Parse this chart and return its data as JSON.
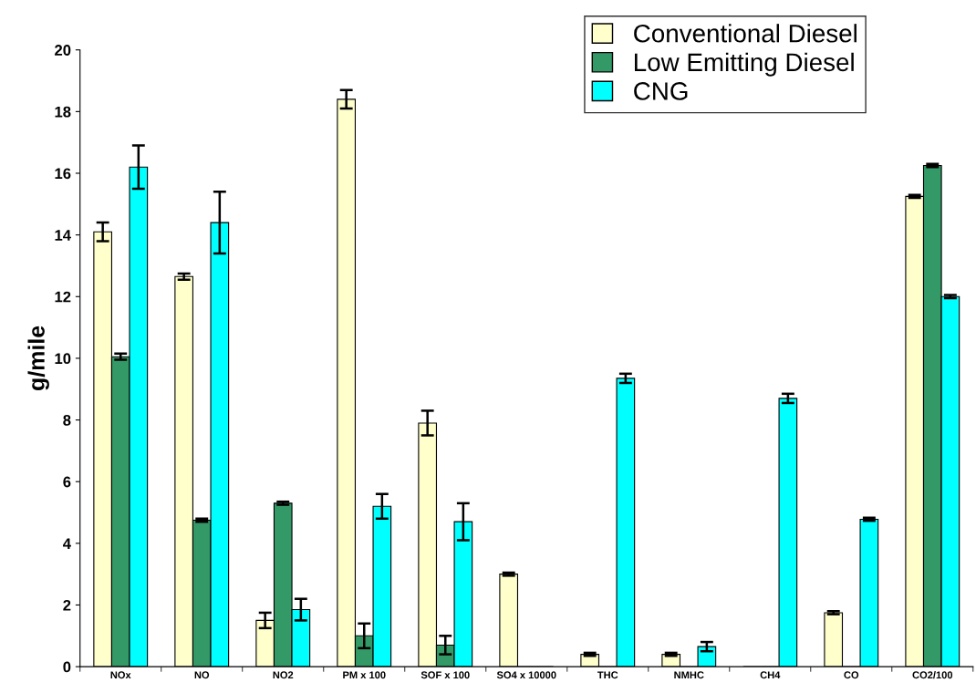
{
  "chart_data": {
    "type": "bar",
    "ylabel": "g/mile",
    "categories": [
      "NOx",
      "NO",
      "NO2",
      "PM x 100",
      "SOF x 100",
      "SO4 x 10000",
      "THC",
      "NMHC",
      "CH4",
      "CO",
      "CO2/100"
    ],
    "series": [
      {
        "name": "Conventional Diesel",
        "color": "#ffffcc",
        "values": [
          14.1,
          12.65,
          1.5,
          18.4,
          7.9,
          3.0,
          0.4,
          0.4,
          0,
          1.75,
          15.25
        ],
        "errors": [
          0.3,
          0.1,
          0.25,
          0.3,
          0.4,
          0.05,
          0.05,
          0.05,
          null,
          0.05,
          0.05
        ]
      },
      {
        "name": "Low Emitting Diesel",
        "color": "#339966",
        "values": [
          10.05,
          4.75,
          5.3,
          1.0,
          0.7,
          0,
          0,
          0,
          0,
          0,
          16.25
        ],
        "errors": [
          0.1,
          0.05,
          0.05,
          0.4,
          0.3,
          null,
          null,
          null,
          null,
          null,
          0.05
        ]
      },
      {
        "name": "CNG",
        "color": "#00ffff",
        "values": [
          16.2,
          14.4,
          1.85,
          5.2,
          4.7,
          0,
          9.35,
          0.65,
          8.7,
          4.78,
          12.0
        ],
        "errors": [
          0.7,
          1.0,
          0.35,
          0.4,
          0.6,
          null,
          0.15,
          0.15,
          0.15,
          0.05,
          0.05
        ]
      }
    ],
    "ylim": [
      0,
      20
    ],
    "yticks": [
      0,
      2,
      4,
      6,
      8,
      10,
      12,
      14,
      16,
      18,
      20
    ],
    "grid": false,
    "legend": "top right"
  }
}
